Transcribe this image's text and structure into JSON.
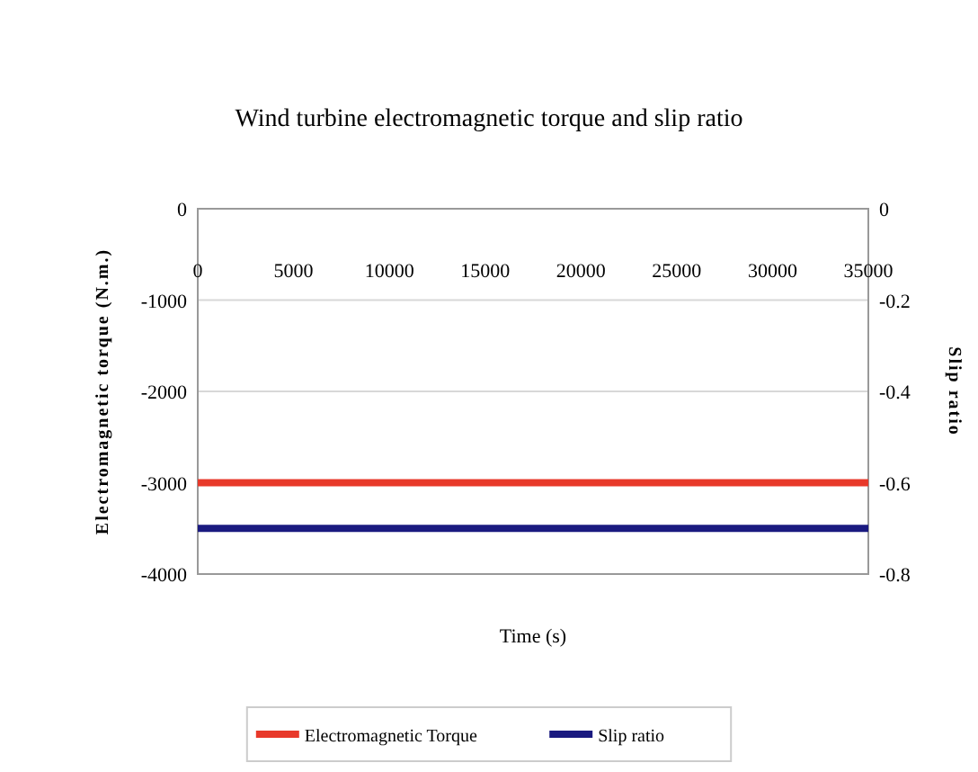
{
  "chart_data": {
    "type": "line",
    "title": "Wind turbine electromagnetic torque and slip ratio",
    "xlabel": "Time (s)",
    "ylabel": "Electromagnetic torque (N.m.)",
    "y2label": "Slip ratio",
    "x": [
      0,
      35000
    ],
    "series": [
      {
        "name": "Electromagnetic Torque",
        "color": "#e8392a",
        "values": [
          -3000,
          -3000
        ]
      },
      {
        "name": "Slip ratio",
        "color": "#1a1a80",
        "values": [
          -0.7,
          -0.7
        ],
        "axis": "y2"
      }
    ],
    "xlim": [
      0,
      35000
    ],
    "xticks": [
      0,
      5000,
      10000,
      15000,
      20000,
      25000,
      30000,
      35000
    ],
    "ylim": [
      -4000,
      0
    ],
    "yticks": [
      -4000,
      -3000,
      -2000,
      -1000,
      0
    ],
    "y2lim": [
      -0.8,
      0
    ],
    "y2ticks": [
      -0.8,
      -0.6,
      -0.4,
      -0.2,
      0
    ],
    "grid": "y",
    "legend": "bottom",
    "marker": "none",
    "line_style": "solid"
  }
}
